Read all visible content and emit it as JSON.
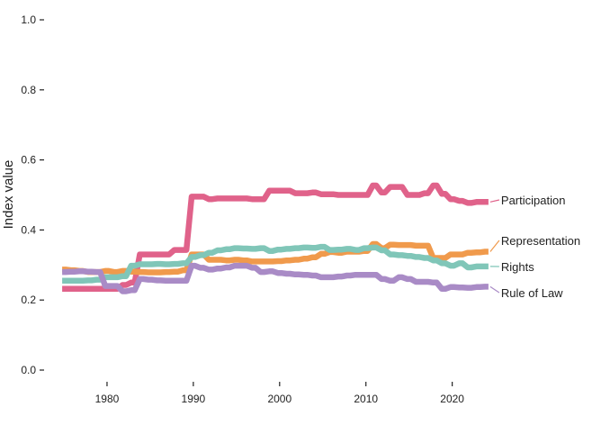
{
  "chart_data": {
    "type": "line",
    "title": "",
    "xlabel": "",
    "ylabel": "Index value",
    "xlim": [
      1975,
      2024
    ],
    "ylim": [
      0,
      1
    ],
    "x_ticks": [
      1980,
      1990,
      2000,
      2010,
      2020
    ],
    "y_ticks": [
      "0.0",
      "0.2",
      "0.4",
      "0.6",
      "0.8",
      "1.0"
    ],
    "grid": false,
    "legend": "direct labels at right end of lines",
    "x": [
      1975,
      1976,
      1977,
      1978,
      1979,
      1980,
      1981,
      1982,
      1983,
      1984,
      1985,
      1986,
      1987,
      1988,
      1989,
      1990,
      1991,
      1992,
      1993,
      1994,
      1995,
      1996,
      1997,
      1998,
      1999,
      2000,
      2001,
      2002,
      2003,
      2004,
      2005,
      2006,
      2007,
      2008,
      2009,
      2010,
      2011,
      2012,
      2013,
      2014,
      2015,
      2016,
      2017,
      2018,
      2019,
      2020,
      2021,
      2022,
      2023,
      2024
    ],
    "series": [
      {
        "name": "Participation",
        "color": "#e0628a",
        "values": [
          0.232,
          0.232,
          0.232,
          0.232,
          0.232,
          0.232,
          0.232,
          0.243,
          0.25,
          0.33,
          0.33,
          0.33,
          0.33,
          0.343,
          0.343,
          0.495,
          0.495,
          0.488,
          0.49,
          0.49,
          0.49,
          0.49,
          0.488,
          0.488,
          0.512,
          0.512,
          0.512,
          0.505,
          0.505,
          0.507,
          0.502,
          0.502,
          0.5,
          0.5,
          0.5,
          0.5,
          0.527,
          0.507,
          0.523,
          0.523,
          0.5,
          0.5,
          0.505,
          0.527,
          0.503,
          0.488,
          0.483,
          0.477,
          0.48,
          0.48
        ]
      },
      {
        "name": "Representation",
        "color": "#f09a4c",
        "values": [
          0.287,
          0.285,
          0.283,
          0.28,
          0.28,
          0.283,
          0.28,
          0.283,
          0.281,
          0.28,
          0.279,
          0.279,
          0.28,
          0.281,
          0.285,
          0.33,
          0.33,
          0.315,
          0.315,
          0.313,
          0.315,
          0.313,
          0.31,
          0.31,
          0.31,
          0.311,
          0.313,
          0.315,
          0.318,
          0.322,
          0.332,
          0.337,
          0.335,
          0.338,
          0.338,
          0.34,
          0.36,
          0.348,
          0.358,
          0.357,
          0.357,
          0.355,
          0.355,
          0.32,
          0.32,
          0.33,
          0.33,
          0.335,
          0.336,
          0.338
        ]
      },
      {
        "name": "Rights",
        "color": "#80c6b8",
        "values": [
          0.255,
          0.255,
          0.255,
          0.256,
          0.258,
          0.265,
          0.265,
          0.268,
          0.298,
          0.302,
          0.302,
          0.303,
          0.302,
          0.303,
          0.305,
          0.323,
          0.328,
          0.335,
          0.342,
          0.345,
          0.348,
          0.347,
          0.346,
          0.348,
          0.34,
          0.344,
          0.346,
          0.348,
          0.35,
          0.349,
          0.352,
          0.343,
          0.344,
          0.346,
          0.343,
          0.348,
          0.35,
          0.342,
          0.33,
          0.328,
          0.326,
          0.323,
          0.32,
          0.313,
          0.305,
          0.298,
          0.305,
          0.293,
          0.296,
          0.296
        ]
      },
      {
        "name": "Rule of Law",
        "color": "#a98bc6",
        "values": [
          0.28,
          0.281,
          0.282,
          0.281,
          0.28,
          0.24,
          0.24,
          0.225,
          0.228,
          0.26,
          0.258,
          0.256,
          0.255,
          0.255,
          0.255,
          0.298,
          0.292,
          0.287,
          0.29,
          0.293,
          0.298,
          0.298,
          0.292,
          0.28,
          0.282,
          0.277,
          0.275,
          0.273,
          0.272,
          0.27,
          0.265,
          0.265,
          0.267,
          0.27,
          0.272,
          0.272,
          0.272,
          0.26,
          0.255,
          0.265,
          0.26,
          0.252,
          0.252,
          0.25,
          0.232,
          0.237,
          0.236,
          0.235,
          0.237,
          0.238
        ]
      }
    ]
  }
}
